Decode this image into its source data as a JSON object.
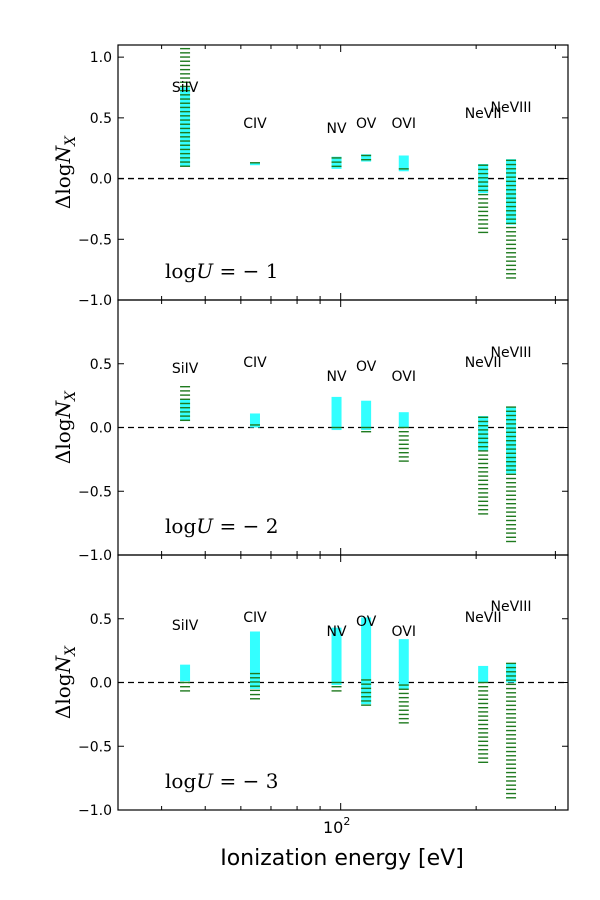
{
  "figure": {
    "xlabel": "Ionization energy [eV]",
    "xtick_label": "10",
    "xtick_exp": "2",
    "ylabel": "ΔlogN_X",
    "ylabel_parts": {
      "main": "Δlog",
      "var": "N",
      "sub": "X"
    },
    "colors": {
      "model_a": "#33ffff",
      "model_b": "#1f7a1f",
      "zero_line": "#000000"
    }
  },
  "chart_data": [
    {
      "type": "bar",
      "panel_label": "log U = −1",
      "panel_label_parts": {
        "pre": "log",
        "var": "U",
        "post": " = − 1"
      },
      "ylim": [
        -1.0,
        1.1
      ],
      "yticks": [
        -1.0,
        -0.5,
        0.0,
        0.5,
        1.0
      ],
      "ytick_labels": [
        "−1.0",
        "−0.5",
        "0.0",
        "0.5",
        "1.0"
      ],
      "ions": [
        {
          "name": "SiIV",
          "energy": 45.1,
          "cyan": [
            0.1,
            0.75
          ],
          "green": [
            0.1,
            1.07
          ]
        },
        {
          "name": "CIV",
          "energy": 64.5,
          "cyan": [
            0.11,
            0.13
          ],
          "green": [
            0.11,
            0.13
          ]
        },
        {
          "name": "NV",
          "energy": 97.9,
          "cyan": [
            0.08,
            0.18
          ],
          "green": [
            0.08,
            0.17
          ]
        },
        {
          "name": "OV",
          "energy": 113.9,
          "cyan": [
            0.14,
            0.2
          ],
          "green": [
            0.14,
            0.19
          ]
        },
        {
          "name": "OVI",
          "energy": 138.1,
          "cyan": [
            0.06,
            0.19
          ],
          "green": [
            0.05,
            0.08
          ]
        },
        {
          "name": "NeVII",
          "energy": 207.3,
          "cyan": [
            -0.12,
            0.12
          ],
          "green": [
            -0.45,
            0.11
          ]
        },
        {
          "name": "NeVIII",
          "energy": 239.1,
          "cyan": [
            -0.38,
            0.16
          ],
          "green": [
            -0.82,
            0.15
          ]
        }
      ]
    },
    {
      "type": "bar",
      "panel_label": "log U = −2",
      "panel_label_parts": {
        "pre": "log",
        "var": "U",
        "post": " = − 2"
      },
      "ylim": [
        -1.0,
        1.0
      ],
      "yticks": [
        -1.0,
        -0.5,
        0.0,
        0.5
      ],
      "ytick_labels": [
        "−1.0",
        "−0.5",
        "0.0",
        "0.5"
      ],
      "ions": [
        {
          "name": "SiIV",
          "energy": 45.1,
          "cyan": [
            0.05,
            0.22
          ],
          "green": [
            0.05,
            0.32
          ]
        },
        {
          "name": "CIV",
          "energy": 64.5,
          "cyan": [
            0.0,
            0.11
          ],
          "green": [
            0.0,
            0.02
          ]
        },
        {
          "name": "NV",
          "energy": 97.9,
          "cyan": [
            -0.02,
            0.24
          ],
          "green": [
            -0.03,
            0.0
          ]
        },
        {
          "name": "OV",
          "energy": 113.9,
          "cyan": [
            -0.02,
            0.21
          ],
          "green": [
            -0.04,
            0.0
          ]
        },
        {
          "name": "OVI",
          "energy": 138.1,
          "cyan": [
            0.0,
            0.12
          ],
          "green": [
            -0.27,
            0.0
          ]
        },
        {
          "name": "NeVII",
          "energy": 207.3,
          "cyan": [
            -0.18,
            0.09
          ],
          "green": [
            -0.69,
            0.08
          ]
        },
        {
          "name": "NeVIII",
          "energy": 239.1,
          "cyan": [
            -0.36,
            0.16
          ],
          "green": [
            -0.92,
            0.16
          ]
        }
      ]
    },
    {
      "type": "bar",
      "panel_label": "log U = −3",
      "panel_label_parts": {
        "pre": "log",
        "var": "U",
        "post": " = − 3"
      },
      "ylim": [
        -1.0,
        1.0
      ],
      "yticks": [
        -1.0,
        -0.5,
        0.0,
        0.5
      ],
      "ytick_labels": [
        "−1.0",
        "−0.5",
        "0.0",
        "0.5"
      ],
      "ions": [
        {
          "name": "SiIV",
          "energy": 45.1,
          "cyan": [
            0.01,
            0.14
          ],
          "green": [
            -0.09,
            0.0
          ]
        },
        {
          "name": "CIV",
          "energy": 64.5,
          "cyan": [
            -0.05,
            0.4
          ],
          "green": [
            -0.14,
            0.07
          ]
        },
        {
          "name": "NV",
          "energy": 97.9,
          "cyan": [
            -0.02,
            0.43
          ],
          "green": [
            -0.07,
            0.0
          ]
        },
        {
          "name": "OV",
          "energy": 113.9,
          "cyan": [
            -0.17,
            0.51
          ],
          "green": [
            -0.19,
            0.02
          ]
        },
        {
          "name": "OVI",
          "energy": 138.1,
          "cyan": [
            -0.05,
            0.34
          ],
          "green": [
            -0.32,
            -0.02
          ]
        },
        {
          "name": "NeVII",
          "energy": 207.3,
          "cyan": [
            0.0,
            0.13
          ],
          "green": [
            -0.64,
            0.0
          ]
        },
        {
          "name": "NeVIII",
          "energy": 239.1,
          "cyan": [
            0.0,
            0.15
          ],
          "green": [
            -0.91,
            0.15
          ]
        }
      ]
    }
  ]
}
